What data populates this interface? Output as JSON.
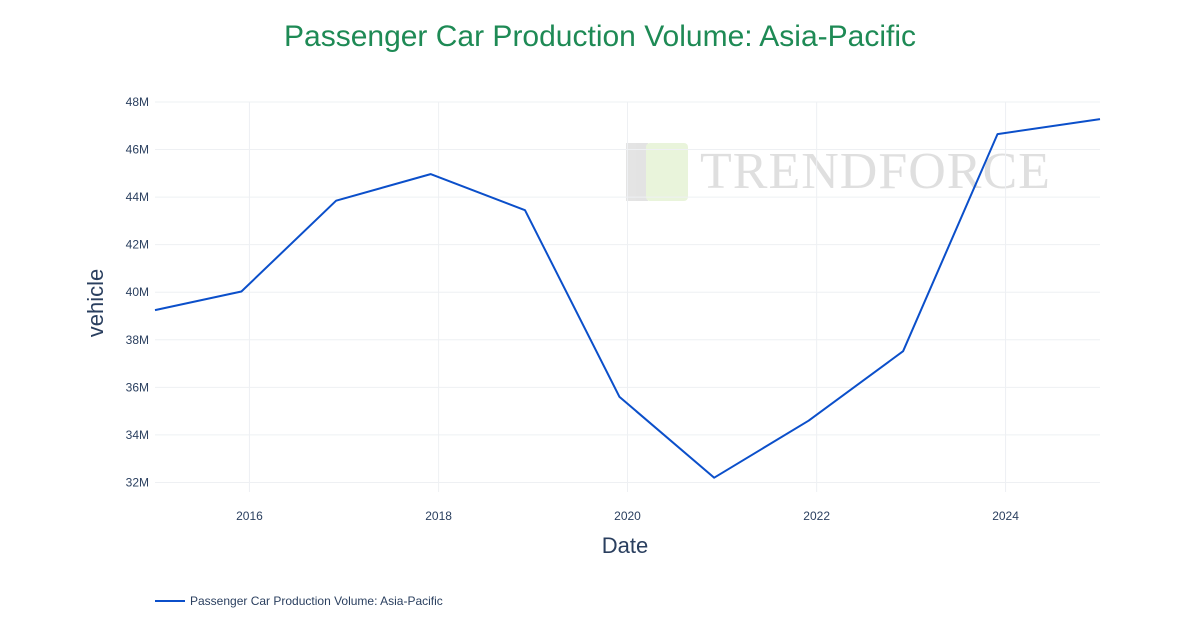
{
  "chart_data": {
    "type": "line",
    "title": "Passenger Car Production Volume: Asia-Pacific",
    "xlabel": "Date",
    "ylabel": "vehicle",
    "x": [
      "2015-01-01",
      "2015-12-01",
      "2016-12-01",
      "2017-12-01",
      "2018-12-01",
      "2019-12-01",
      "2020-12-01",
      "2021-12-01",
      "2022-12-01",
      "2023-12-01",
      "2024-12-31"
    ],
    "x_ticks": [
      "2016",
      "2018",
      "2020",
      "2022",
      "2024"
    ],
    "y_ticks": [
      "32M",
      "34M",
      "36M",
      "38M",
      "40M",
      "42M",
      "44M",
      "46M",
      "48M"
    ],
    "ylim": [
      31.6,
      48.0
    ],
    "y_unit": "M",
    "series": [
      {
        "name": "Passenger Car Production Volume: Asia-Pacific",
        "color": "#0b4fca",
        "values": [
          39.25,
          40.03,
          43.85,
          44.97,
          43.45,
          35.6,
          32.2,
          34.6,
          37.52,
          46.65,
          47.28
        ]
      }
    ],
    "grid": true,
    "legend_position": "bottom-left"
  },
  "watermark": {
    "text": "TRENDFORCE"
  }
}
